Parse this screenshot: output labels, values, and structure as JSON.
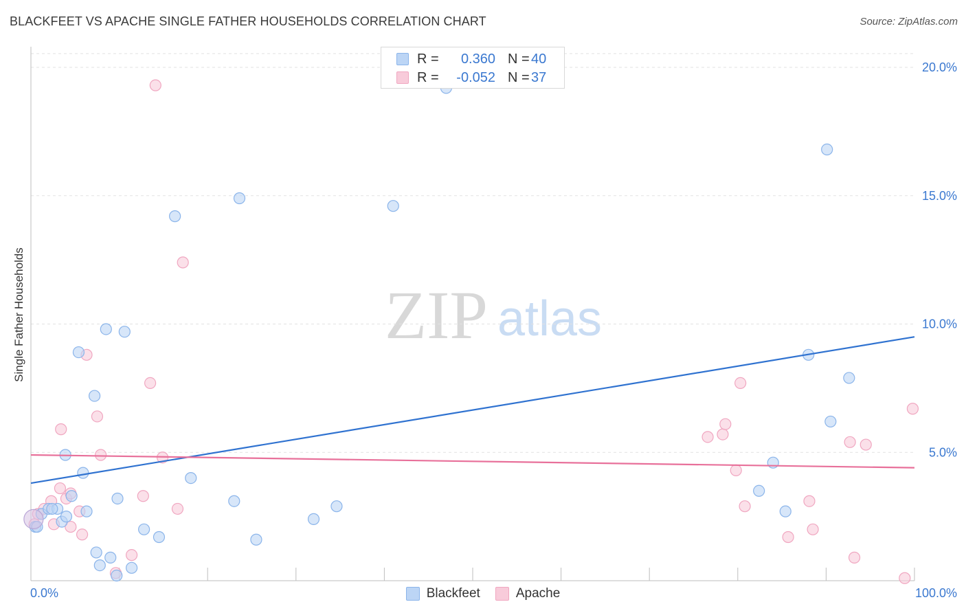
{
  "chart_data": {
    "type": "scatter",
    "title": "BLACKFEET VS APACHE SINGLE FATHER HOUSEHOLDS CORRELATION CHART",
    "source": "Source: ZipAtlas.com",
    "xlabel": "",
    "ylabel": "Single Father Households",
    "xlim": [
      0,
      100
    ],
    "ylim": [
      0,
      20
    ],
    "x_tick_labels": [
      "0.0%",
      "100.0%"
    ],
    "y_ticks": [
      5,
      10,
      15,
      20
    ],
    "y_tick_labels": [
      "5.0%",
      "10.0%",
      "15.0%",
      "20.0%"
    ],
    "watermark": {
      "zip": "ZIP",
      "atlas": "atlas"
    },
    "series": [
      {
        "name": "Blackfeet",
        "color": "#8ab4ea",
        "fill": "#bcd5f5",
        "line_color": "#2f72d0",
        "legend": {
          "r_label": "R =",
          "r_value": "0.360",
          "n_label": "N =",
          "n_value": "40"
        },
        "trend": {
          "x": [
            0,
            100
          ],
          "y": [
            3.8,
            9.5
          ]
        },
        "points": [
          [
            0.5,
            2.1
          ],
          [
            0.7,
            2.1
          ],
          [
            1.2,
            2.6
          ],
          [
            2.0,
            2.8
          ],
          [
            3.0,
            2.8
          ],
          [
            3.5,
            2.3
          ],
          [
            4.0,
            2.5
          ],
          [
            4.6,
            3.3
          ],
          [
            3.9,
            4.9
          ],
          [
            5.4,
            8.9
          ],
          [
            5.9,
            4.2
          ],
          [
            6.3,
            2.7
          ],
          [
            7.2,
            7.2
          ],
          [
            7.4,
            1.1
          ],
          [
            7.8,
            0.6
          ],
          [
            8.5,
            9.8
          ],
          [
            9.0,
            0.9
          ],
          [
            9.7,
            0.2
          ],
          [
            9.8,
            3.2
          ],
          [
            10.6,
            9.7
          ],
          [
            11.4,
            0.5
          ],
          [
            12.8,
            2.0
          ],
          [
            14.5,
            1.7
          ],
          [
            16.3,
            14.2
          ],
          [
            18.1,
            4.0
          ],
          [
            23.0,
            3.1
          ],
          [
            23.6,
            14.9
          ],
          [
            25.5,
            1.6
          ],
          [
            32.0,
            2.4
          ],
          [
            34.6,
            2.9
          ],
          [
            41.0,
            14.6
          ],
          [
            47.0,
            19.2
          ],
          [
            84.0,
            4.6
          ],
          [
            82.4,
            3.5
          ],
          [
            85.4,
            2.7
          ],
          [
            88.0,
            8.8
          ],
          [
            90.1,
            16.8
          ],
          [
            90.5,
            6.2
          ],
          [
            92.6,
            7.9
          ],
          [
            2.4,
            2.8
          ]
        ]
      },
      {
        "name": "Apache",
        "color": "#f0a6c0",
        "fill": "#f8cbda",
        "line_color": "#e8709a",
        "legend": {
          "r_label": "R =",
          "r_value": "-0.052",
          "n_label": "N =",
          "n_value": "37"
        },
        "trend": {
          "x": [
            0,
            100
          ],
          "y": [
            4.9,
            4.4
          ]
        },
        "points": [
          [
            0.4,
            2.2
          ],
          [
            0.8,
            2.6
          ],
          [
            1.5,
            2.8
          ],
          [
            2.3,
            3.1
          ],
          [
            2.6,
            2.2
          ],
          [
            3.3,
            3.6
          ],
          [
            3.4,
            5.9
          ],
          [
            4.0,
            3.2
          ],
          [
            4.5,
            2.1
          ],
          [
            4.5,
            3.4
          ],
          [
            5.5,
            2.7
          ],
          [
            5.8,
            1.8
          ],
          [
            6.3,
            8.8
          ],
          [
            7.5,
            6.4
          ],
          [
            7.9,
            4.9
          ],
          [
            9.6,
            0.3
          ],
          [
            11.4,
            1.0
          ],
          [
            12.7,
            3.3
          ],
          [
            13.5,
            7.7
          ],
          [
            14.1,
            19.3
          ],
          [
            14.9,
            4.8
          ],
          [
            16.6,
            2.8
          ],
          [
            17.2,
            12.4
          ],
          [
            76.6,
            5.6
          ],
          [
            78.3,
            5.7
          ],
          [
            78.6,
            6.1
          ],
          [
            79.8,
            4.3
          ],
          [
            80.3,
            7.7
          ],
          [
            80.8,
            2.9
          ],
          [
            85.7,
            1.7
          ],
          [
            88.1,
            3.1
          ],
          [
            88.5,
            2.0
          ],
          [
            92.7,
            5.4
          ],
          [
            93.2,
            0.9
          ],
          [
            94.5,
            5.3
          ],
          [
            98.9,
            0.1
          ],
          [
            99.8,
            6.7
          ]
        ]
      }
    ]
  }
}
